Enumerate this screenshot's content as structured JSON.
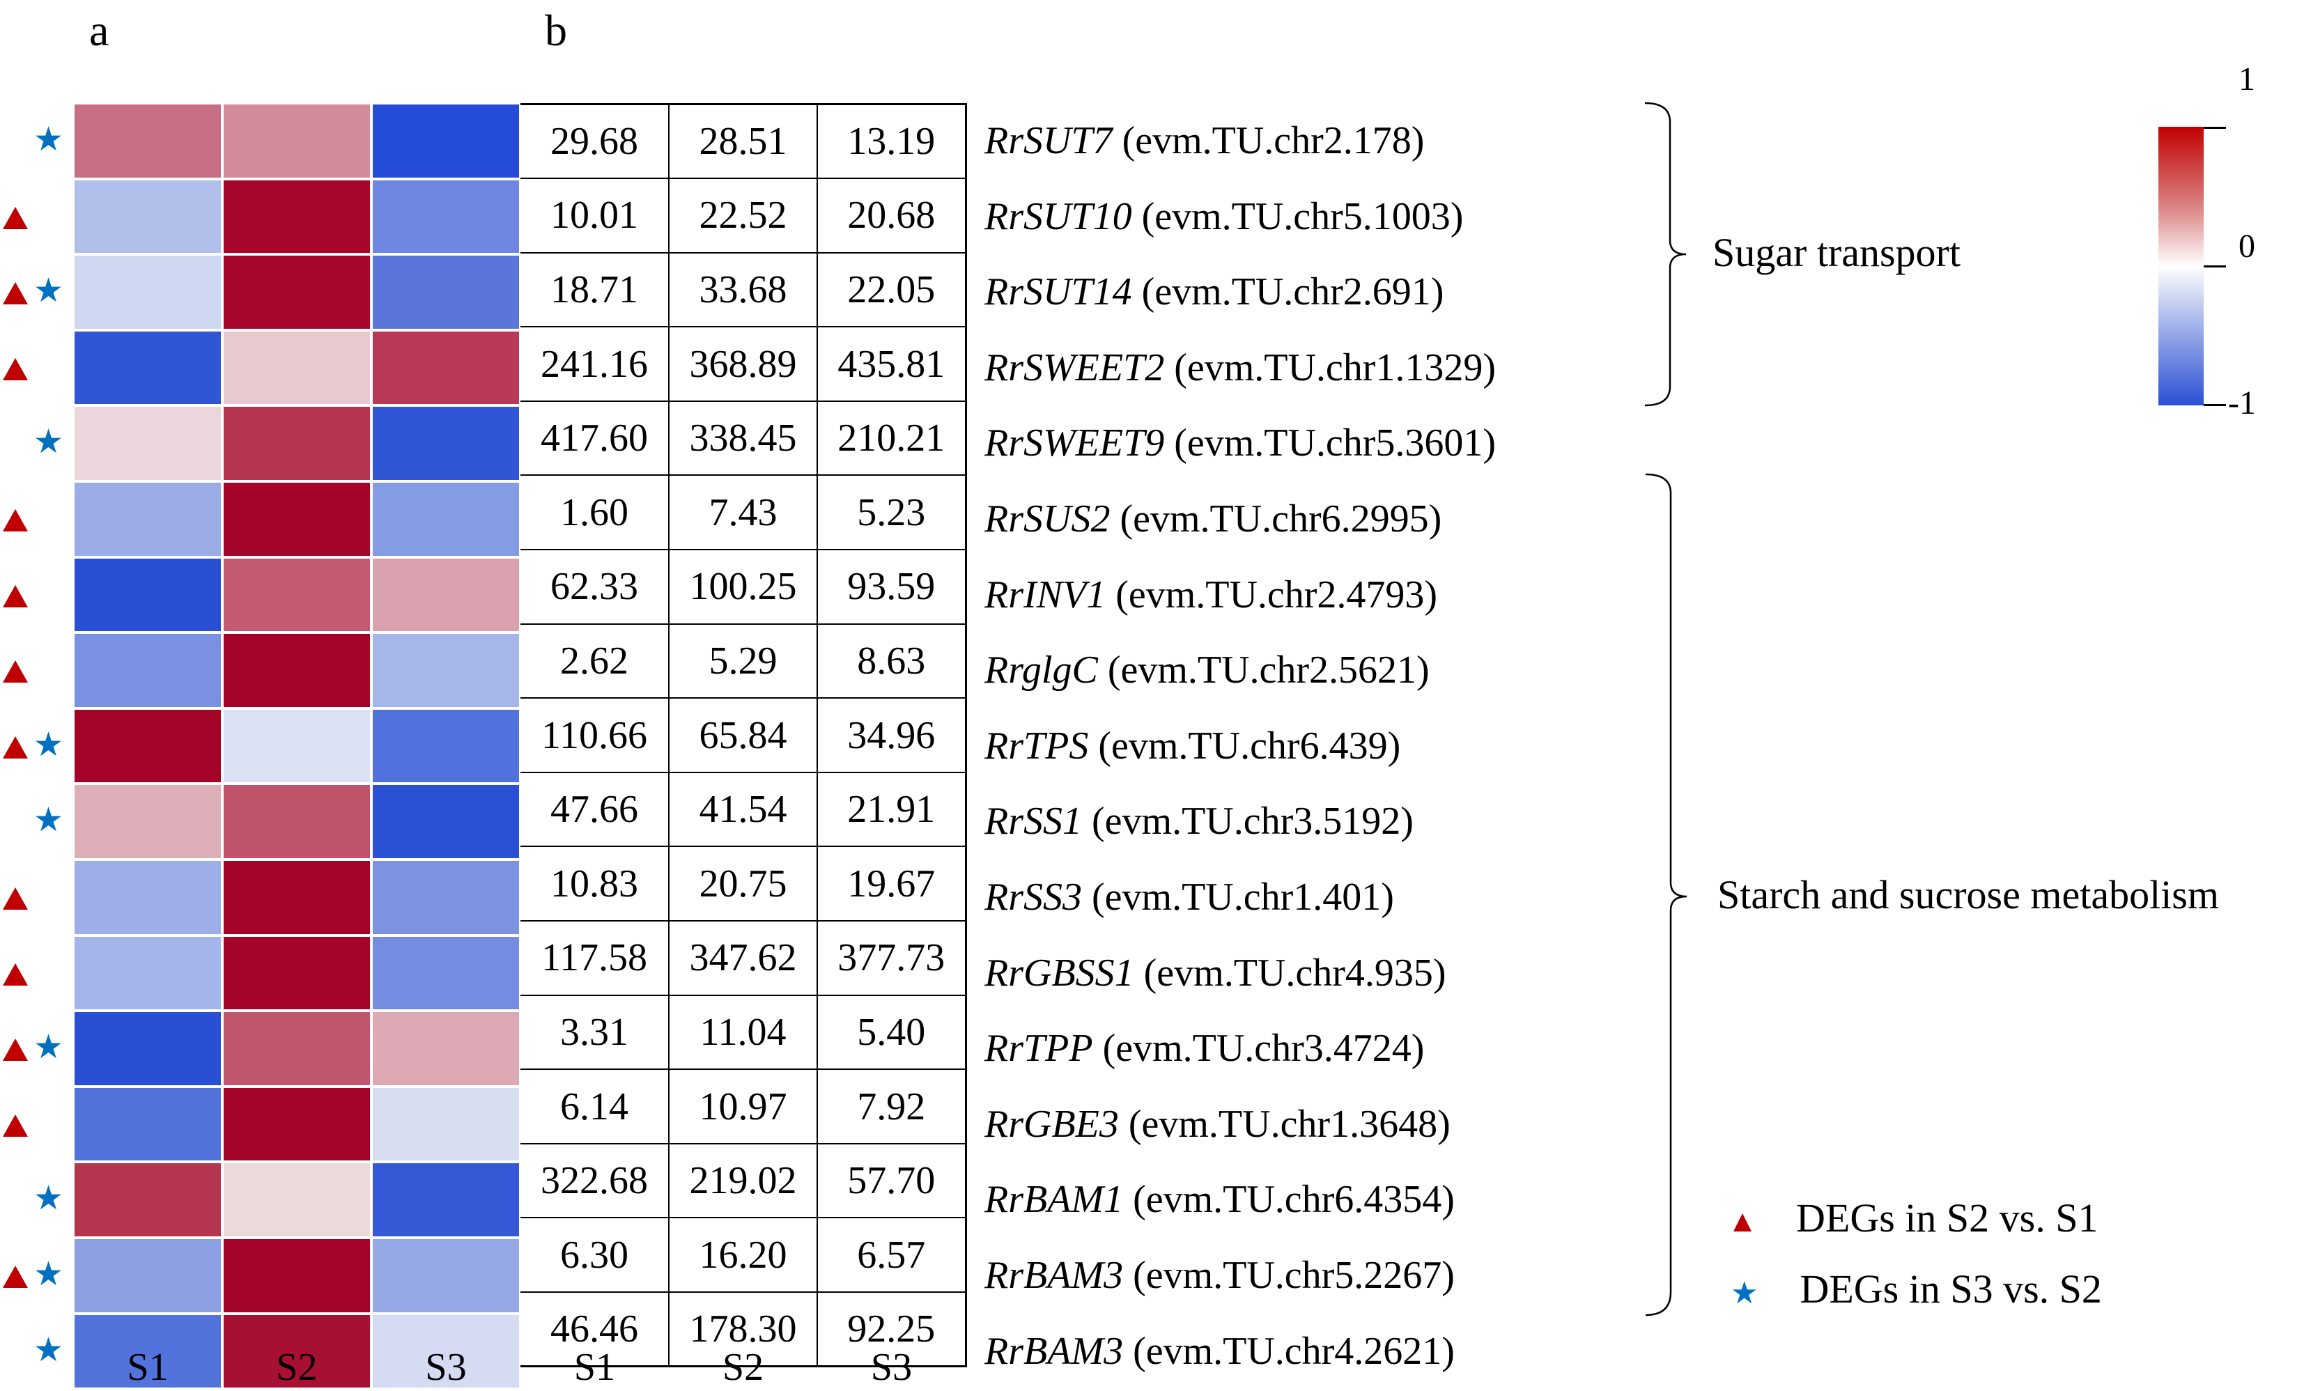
{
  "panels": {
    "a_label": "a",
    "b_label": "b"
  },
  "samples": [
    "S1",
    "S2",
    "S3"
  ],
  "colorbar": {
    "max_label": "1",
    "mid_label": "0",
    "min_label": "-1",
    "high_color": "#c00000",
    "mid_color": "#ffffff",
    "low_color": "#2a4fd4"
  },
  "legend": {
    "triangle": {
      "label": "DEGs in S2 vs. S1",
      "color": "#c00000"
    },
    "star": {
      "label": "DEGs in S3 vs. S2",
      "color": "#0070c0"
    }
  },
  "groups": [
    {
      "label": "Sugar transport",
      "rows": [
        0,
        4
      ]
    },
    {
      "label": "Starch and sucrose metabolism",
      "rows": [
        5,
        16
      ]
    }
  ],
  "rows": [
    {
      "gene": "RrSUT7",
      "id": "(evm.TU.chr2.178)",
      "tri": false,
      "star": true,
      "values": [
        "29.68",
        "28.51",
        "13.19"
      ],
      "colors": [
        "#c86e84",
        "#d38a99",
        "#244cd6"
      ]
    },
    {
      "gene": "RrSUT10",
      "id": "(evm.TU.chr5.1003)",
      "tri": true,
      "star": false,
      "values": [
        "10.01",
        "22.52",
        "20.68"
      ],
      "colors": [
        "#b1c0eb",
        "#a5062a",
        "#6e86e0"
      ]
    },
    {
      "gene": "RrSUT14",
      "id": "(evm.TU.chr2.691)",
      "tri": true,
      "star": true,
      "values": [
        "18.71",
        "33.68",
        "22.05"
      ],
      "colors": [
        "#cfd8f1",
        "#a5062a",
        "#5a76db"
      ]
    },
    {
      "gene": "RrSWEET2",
      "id": "(evm.TU.chr1.1329)",
      "tri": true,
      "star": false,
      "values": [
        "241.16",
        "368.89",
        "435.81"
      ],
      "colors": [
        "#3056d6",
        "#e7cad0",
        "#b93a58"
      ]
    },
    {
      "gene": "RrSWEET9",
      "id": "(evm.TU.chr5.3601)",
      "tri": false,
      "star": true,
      "values": [
        "417.60",
        "338.45",
        "210.21"
      ],
      "colors": [
        "#ebd7db",
        "#b53551",
        "#3056d6"
      ]
    },
    {
      "gene": "RrSUS2",
      "id": "(evm.TU.chr6.2995)",
      "tri": true,
      "star": false,
      "values": [
        "1.60",
        "7.43",
        "5.23"
      ],
      "colors": [
        "#9aabe6",
        "#a30428",
        "#849ce3"
      ]
    },
    {
      "gene": "RrINV1",
      "id": "(evm.TU.chr2.4793)",
      "tri": true,
      "star": false,
      "values": [
        "62.33",
        "100.25",
        "93.59"
      ],
      "colors": [
        "#284fd4",
        "#c25b71",
        "#d9a1ae"
      ]
    },
    {
      "gene": "RrglgC",
      "id": "(evm.TU.chr2.5621)",
      "tri": true,
      "star": false,
      "values": [
        "2.62",
        "5.29",
        "8.63"
      ],
      "colors": [
        "#7a91e1",
        "#a30428",
        "#a6b6e9"
      ]
    },
    {
      "gene": "RrTPS",
      "id": "(evm.TU.chr6.439)",
      "tri": true,
      "star": true,
      "values": [
        "110.66",
        "65.84",
        "34.96"
      ],
      "colors": [
        "#a30428",
        "#dbe0f3",
        "#5171dc"
      ]
    },
    {
      "gene": "RrSS1",
      "id": "(evm.TU.chr3.5192)",
      "tri": false,
      "star": true,
      "values": [
        "47.66",
        "41.54",
        "21.91"
      ],
      "colors": [
        "#deafb9",
        "#be5369",
        "#2a51d5"
      ]
    },
    {
      "gene": "RrSS3",
      "id": "(evm.TU.chr1.401)",
      "tri": true,
      "star": false,
      "values": [
        "10.83",
        "20.75",
        "19.67"
      ],
      "colors": [
        "#9eafe7",
        "#a30428",
        "#7b93e1"
      ]
    },
    {
      "gene": "RrGBSS1",
      "id": "(evm.TU.chr4.935)",
      "tri": true,
      "star": false,
      "values": [
        "117.58",
        "347.62",
        "377.73"
      ],
      "colors": [
        "#a4b5e9",
        "#a30428",
        "#758de0"
      ]
    },
    {
      "gene": "RrTPP",
      "id": "(evm.TU.chr3.4724)",
      "tri": true,
      "star": true,
      "values": [
        "3.31",
        "11.04",
        "5.40"
      ],
      "colors": [
        "#284fd4",
        "#c0566c",
        "#dca9b4"
      ]
    },
    {
      "gene": "RrGBE3",
      "id": "(evm.TU.chr1.3648)",
      "tri": true,
      "star": false,
      "values": [
        "6.14",
        "10.97",
        "7.92"
      ],
      "colors": [
        "#5373dc",
        "#a30428",
        "#d7ddf1"
      ]
    },
    {
      "gene": "RrBAM1",
      "id": "(evm.TU.chr6.4354)",
      "tri": false,
      "star": true,
      "values": [
        "322.68",
        "219.02",
        "57.70"
      ],
      "colors": [
        "#b5354f",
        "#ebd9dc",
        "#3559d6"
      ]
    },
    {
      "gene": "RrBAM3",
      "id": "(evm.TU.chr5.2267)",
      "tri": true,
      "star": true,
      "values": [
        "6.30",
        "16.20",
        "6.57"
      ],
      "colors": [
        "#8b9fe2",
        "#a30428",
        "#95a7e5"
      ]
    },
    {
      "gene": "RrBAM3",
      "id": "(evm.TU.chr4.2621)",
      "tri": false,
      "star": true,
      "values": [
        "46.46",
        "178.30",
        "92.25"
      ],
      "colors": [
        "#5373dc",
        "#a81033",
        "#d4dbf2"
      ]
    }
  ],
  "chart_data": {
    "type": "heatmap",
    "title": "",
    "x": [
      "S1",
      "S2",
      "S3"
    ],
    "y": [
      "RrSUT7 (evm.TU.chr2.178)",
      "RrSUT10 (evm.TU.chr5.1003)",
      "RrSUT14 (evm.TU.chr2.691)",
      "RrSWEET2 (evm.TU.chr1.1329)",
      "RrSWEET9 (evm.TU.chr5.3601)",
      "RrSUS2 (evm.TU.chr6.2995)",
      "RrINV1 (evm.TU.chr2.4793)",
      "RrglgC (evm.TU.chr2.5621)",
      "RrTPS (evm.TU.chr6.439)",
      "RrSS1 (evm.TU.chr3.5192)",
      "RrSS3 (evm.TU.chr1.401)",
      "RrGBSS1 (evm.TU.chr4.935)",
      "RrTPP (evm.TU.chr3.4724)",
      "RrGBE3 (evm.TU.chr1.3648)",
      "RrBAM1 (evm.TU.chr6.4354)",
      "RrBAM3 (evm.TU.chr5.2267)",
      "RrBAM3 (evm.TU.chr4.2621)"
    ],
    "z_scaled_approx": [
      [
        0.55,
        0.45,
        -0.95
      ],
      [
        -0.35,
        1.0,
        -0.65
      ],
      [
        -0.2,
        1.0,
        -0.75
      ],
      [
        -0.9,
        0.2,
        0.85
      ],
      [
        0.15,
        0.85,
        -0.9
      ],
      [
        -0.45,
        1.0,
        -0.55
      ],
      [
        -0.95,
        0.7,
        0.4
      ],
      [
        -0.6,
        1.0,
        -0.4
      ],
      [
        1.0,
        -0.15,
        -0.75
      ],
      [
        0.3,
        0.7,
        -0.95
      ],
      [
        -0.45,
        1.0,
        -0.6
      ],
      [
        -0.4,
        1.0,
        -0.65
      ],
      [
        -0.95,
        0.7,
        0.35
      ],
      [
        -0.8,
        1.0,
        -0.2
      ],
      [
        0.85,
        0.15,
        -0.9
      ],
      [
        -0.55,
        1.0,
        -0.5
      ],
      [
        -0.8,
        0.95,
        -0.2
      ]
    ],
    "table_values": [
      [
        29.68,
        28.51,
        13.19
      ],
      [
        10.01,
        22.52,
        20.68
      ],
      [
        18.71,
        33.68,
        22.05
      ],
      [
        241.16,
        368.89,
        435.81
      ],
      [
        417.6,
        338.45,
        210.21
      ],
      [
        1.6,
        7.43,
        5.23
      ],
      [
        62.33,
        100.25,
        93.59
      ],
      [
        2.62,
        5.29,
        8.63
      ],
      [
        110.66,
        65.84,
        34.96
      ],
      [
        47.66,
        41.54,
        21.91
      ],
      [
        10.83,
        20.75,
        19.67
      ],
      [
        117.58,
        347.62,
        377.73
      ],
      [
        3.31,
        11.04,
        5.4
      ],
      [
        6.14,
        10.97,
        7.92
      ],
      [
        322.68,
        219.02,
        57.7
      ],
      [
        6.3,
        16.2,
        6.57
      ],
      [
        46.46,
        178.3,
        92.25
      ]
    ],
    "colorbar_range": [
      -1,
      1
    ],
    "colorbar_ticks": [
      1,
      0,
      -1
    ],
    "groups": [
      {
        "label": "Sugar transport",
        "rows": [
          "RrSUT7",
          "RrSUT10",
          "RrSUT14",
          "RrSWEET2",
          "RrSWEET9"
        ]
      },
      {
        "label": "Starch and sucrose metabolism",
        "rows": [
          "RrSUS2",
          "RrINV1",
          "RrglgC",
          "RrTPS",
          "RrSS1",
          "RrSS3",
          "RrGBSS1",
          "RrTPP",
          "RrGBE3",
          "RrBAM1",
          "RrBAM3",
          "RrBAM3"
        ]
      }
    ],
    "markers": {
      "DEGs in S2 vs. S1 (triangle)": [
        "RrSUT10",
        "RrSUT14",
        "RrSWEET2",
        "RrSUS2",
        "RrINV1",
        "RrglgC",
        "RrTPS",
        "RrSS3",
        "RrGBSS1",
        "RrTPP",
        "RrGBE3",
        "RrBAM3 (chr5.2267)"
      ],
      "DEGs in S3 vs. S2 (star)": [
        "RrSUT7",
        "RrSUT14",
        "RrSWEET9",
        "RrTPS",
        "RrSS1",
        "RrTPP",
        "RrBAM1",
        "RrBAM3 (chr5.2267)",
        "RrBAM3 (chr4.2621)"
      ]
    },
    "legend_position": "bottom-right",
    "xlabel": "",
    "ylabel": ""
  }
}
